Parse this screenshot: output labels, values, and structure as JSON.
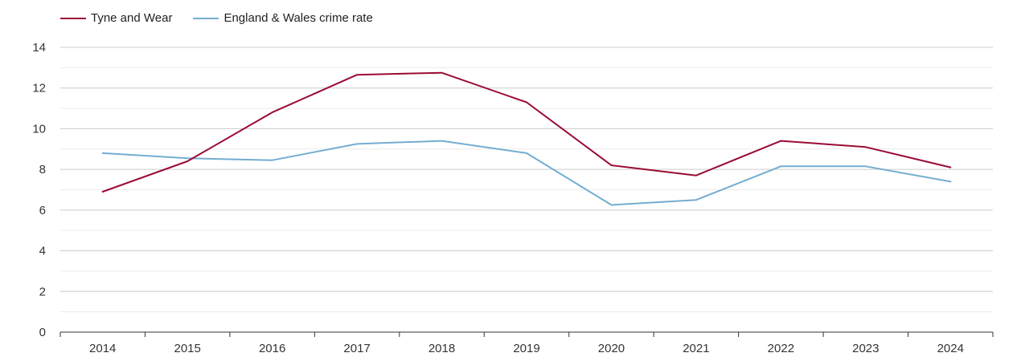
{
  "chart_data": {
    "type": "line",
    "title": "",
    "xlabel": "",
    "ylabel": "",
    "categories": [
      "2014",
      "2015",
      "2016",
      "2017",
      "2018",
      "2019",
      "2020",
      "2021",
      "2022",
      "2023",
      "2024"
    ],
    "series": [
      {
        "name": "Tyne and Wear",
        "color": "#9b0b33",
        "values": [
          6.9,
          8.4,
          10.8,
          12.65,
          12.75,
          11.3,
          8.2,
          7.7,
          9.4,
          9.1,
          8.1
        ]
      },
      {
        "name": "England & Wales crime rate",
        "color": "#74add1",
        "values": [
          8.8,
          8.55,
          8.45,
          9.25,
          9.4,
          8.8,
          6.25,
          6.5,
          8.15,
          8.15,
          7.4
        ]
      }
    ],
    "ylim": [
      0,
      14
    ],
    "yticks": [
      0,
      2,
      4,
      6,
      8,
      10,
      12,
      14
    ],
    "grid": true,
    "legend_position": "top-left"
  }
}
